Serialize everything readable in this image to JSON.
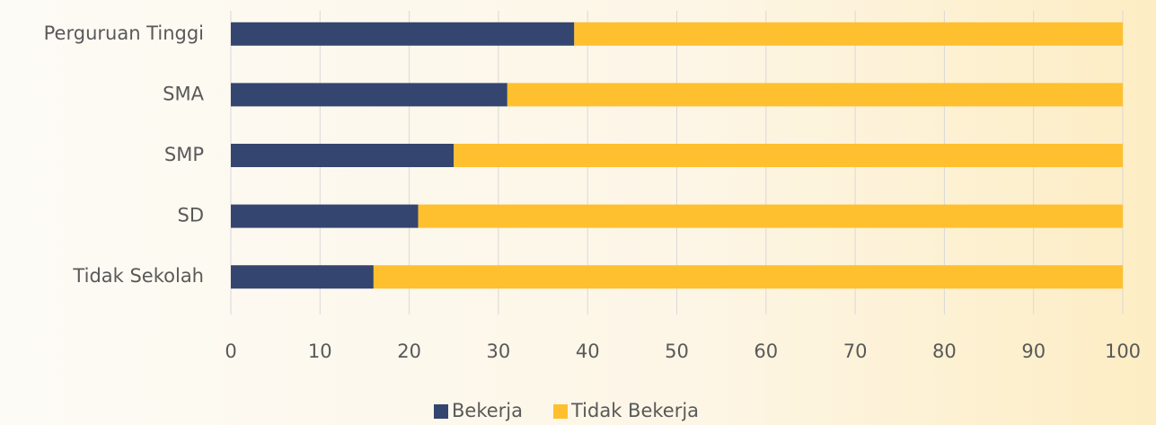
{
  "chart_data": {
    "type": "bar",
    "orientation": "horizontal",
    "stacked": true,
    "categories": [
      "Perguruan Tinggi",
      "SMA",
      "SMP",
      "SD",
      "Tidak Sekolah"
    ],
    "series": [
      {
        "name": "Bekerja",
        "color": "#34466f",
        "values": [
          38.5,
          31,
          25,
          21,
          16
        ]
      },
      {
        "name": "Tidak Bekerja",
        "color": "#ffc02f",
        "values": [
          61.5,
          69,
          75,
          79,
          84
        ]
      }
    ],
    "xlim": [
      0,
      100
    ],
    "xticks": [
      0,
      10,
      20,
      30,
      40,
      50,
      60,
      70,
      80,
      90,
      100
    ],
    "grid": true,
    "legend": "bottom"
  }
}
